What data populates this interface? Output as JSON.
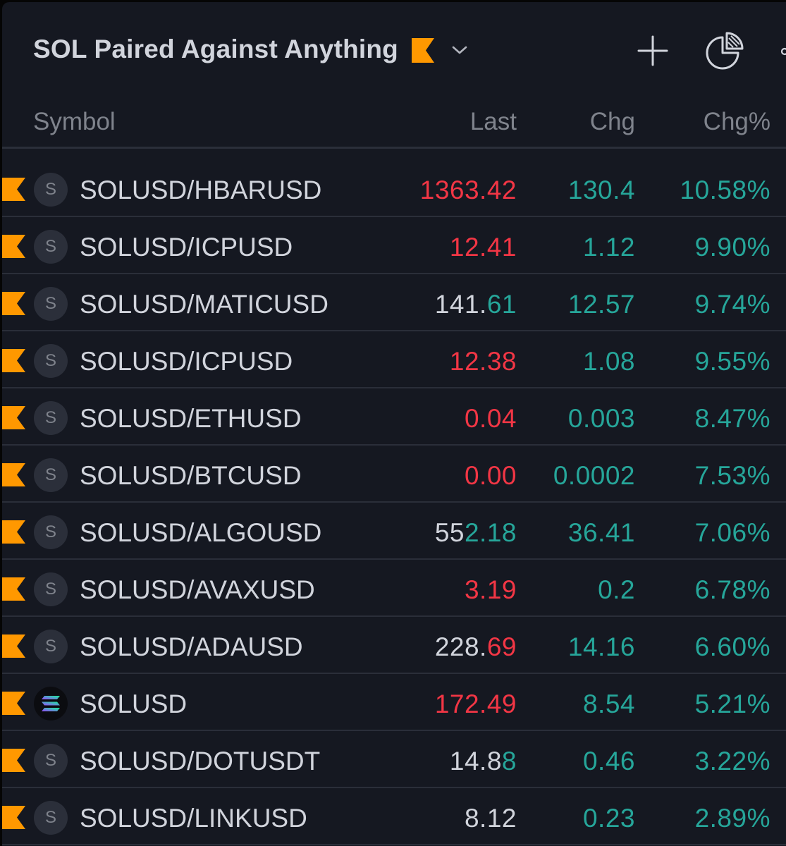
{
  "watchlist": {
    "title": "SOL Paired Against Anything",
    "flag_color": "#ff9800",
    "icons": [
      "flag-icon",
      "chevron-down-icon",
      "plus-icon",
      "pie-chart-icon",
      "more-icon"
    ]
  },
  "columns": {
    "symbol": "Symbol",
    "last": "Last",
    "chg": "Chg",
    "chgp": "Chg%"
  },
  "colors": {
    "up": "#26a69a",
    "down": "#f23645",
    "neutral": "#d1d4dc",
    "background": "#151821"
  },
  "rows": [
    {
      "avatar": "S",
      "symbol": "SOLUSD/HBARUSD",
      "last_plain": "",
      "last_colored": "1363.42",
      "last_color": "red",
      "chg": "130.4",
      "chgp": "10.58%"
    },
    {
      "avatar": "S",
      "symbol": "SOLUSD/ICPUSD",
      "last_plain": "",
      "last_colored": "12.41",
      "last_color": "red",
      "chg": "1.12",
      "chgp": "9.90%"
    },
    {
      "avatar": "S",
      "symbol": "SOLUSD/MATICUSD",
      "last_plain": "141.",
      "last_colored": "61",
      "last_color": "green",
      "chg": "12.57",
      "chgp": "9.74%"
    },
    {
      "avatar": "S",
      "symbol": "SOLUSD/ICPUSD",
      "last_plain": "",
      "last_colored": "12.38",
      "last_color": "red",
      "chg": "1.08",
      "chgp": "9.55%"
    },
    {
      "avatar": "S",
      "symbol": "SOLUSD/ETHUSD",
      "last_plain": "",
      "last_colored": "0.04",
      "last_color": "red",
      "chg": "0.003",
      "chgp": "8.47%"
    },
    {
      "avatar": "S",
      "symbol": "SOLUSD/BTCUSD",
      "last_plain": "",
      "last_colored": "0.00",
      "last_color": "red",
      "chg": "0.0002",
      "chgp": "7.53%"
    },
    {
      "avatar": "S",
      "symbol": "SOLUSD/ALGOUSD",
      "last_plain": "55",
      "last_colored": "2.18",
      "last_color": "green",
      "chg": "36.41",
      "chgp": "7.06%"
    },
    {
      "avatar": "S",
      "symbol": "SOLUSD/AVAXUSD",
      "last_plain": "",
      "last_colored": "3.19",
      "last_color": "red",
      "chg": "0.2",
      "chgp": "6.78%"
    },
    {
      "avatar": "S",
      "symbol": "SOLUSD/ADAUSD",
      "last_plain": "228.",
      "last_colored": "69",
      "last_color": "red",
      "chg": "14.16",
      "chgp": "6.60%"
    },
    {
      "avatar": "",
      "avatar_icon": "solana-logo-icon",
      "symbol": "SOLUSD",
      "last_plain": "",
      "last_colored": "172.49",
      "last_color": "red",
      "chg": "8.54",
      "chgp": "5.21%"
    },
    {
      "avatar": "S",
      "symbol": "SOLUSD/DOTUSDT",
      "last_plain": "14.8",
      "last_colored": "8",
      "last_color": "green",
      "chg": "0.46",
      "chgp": "3.22%"
    },
    {
      "avatar": "S",
      "symbol": "SOLUSD/LINKUSD",
      "last_plain": "8.12",
      "last_colored": "",
      "last_color": "white",
      "chg": "0.23",
      "chgp": "2.89%"
    }
  ]
}
